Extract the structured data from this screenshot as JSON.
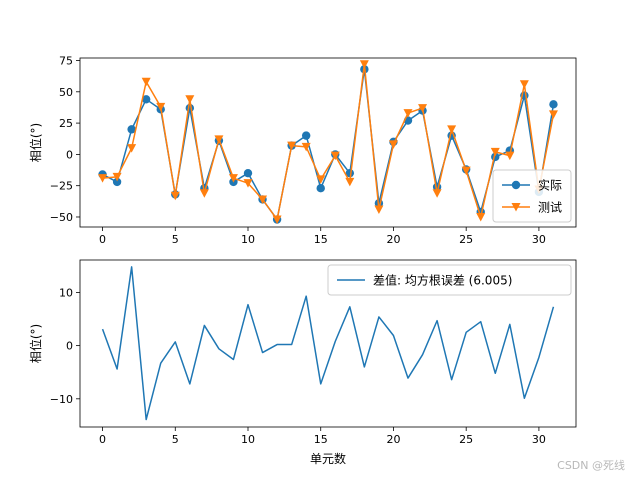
{
  "colors": {
    "blue": "#1f77b4",
    "orange": "#ff7f0e"
  },
  "watermark": "CSDN @死线",
  "chart_data": [
    {
      "type": "line",
      "x": [
        0,
        1,
        2,
        3,
        4,
        5,
        6,
        7,
        8,
        9,
        10,
        11,
        12,
        13,
        14,
        15,
        16,
        17,
        18,
        19,
        20,
        21,
        22,
        23,
        24,
        25,
        26,
        27,
        28,
        29,
        30,
        31
      ],
      "xticks": [
        0,
        5,
        10,
        15,
        20,
        25,
        30
      ],
      "xlim": [
        -1.55,
        32.55
      ],
      "yticks": [
        -50,
        -25,
        0,
        25,
        50,
        75
      ],
      "ylim": [
        -58,
        77
      ],
      "ylabel": "相位(°)",
      "xlabel": "",
      "legend_position": "lower right",
      "series": [
        {
          "name": "实际",
          "marker": "circle",
          "color": "#1f77b4",
          "values": [
            -16,
            -22,
            20,
            44,
            36,
            -32,
            37,
            -27,
            11,
            -22,
            -15,
            -36,
            -52,
            7,
            15,
            -27,
            0,
            -15,
            68,
            -39,
            10,
            27,
            35,
            -26,
            15,
            -12,
            -46,
            -2,
            3,
            47,
            -30,
            40
          ]
        },
        {
          "name": "测试",
          "marker": "triangle-down",
          "color": "#ff7f0e",
          "values": [
            -19,
            -18,
            5,
            58,
            38,
            -33,
            44,
            -31,
            12,
            -19,
            -23,
            -36,
            -52,
            7,
            6,
            -20,
            -1,
            -22,
            72,
            -44,
            8,
            33,
            37,
            -31,
            20,
            -13,
            -50,
            2,
            -1,
            56,
            -28,
            32
          ]
        }
      ]
    },
    {
      "type": "line",
      "x": [
        0,
        1,
        2,
        3,
        4,
        5,
        6,
        7,
        8,
        9,
        10,
        11,
        12,
        13,
        14,
        15,
        16,
        17,
        18,
        19,
        20,
        21,
        22,
        23,
        24,
        25,
        26,
        27,
        28,
        29,
        30,
        31
      ],
      "xticks": [
        0,
        5,
        10,
        15,
        20,
        25,
        30
      ],
      "xlim": [
        -1.55,
        32.55
      ],
      "yticks": [
        -10,
        0,
        10
      ],
      "ylim": [
        -15.3,
        16.1
      ],
      "ylabel": "相位(°)",
      "xlabel": "单元数",
      "legend_position": "upper right",
      "series": [
        {
          "name": "差值: 均方根误差 (6.005)",
          "color": "#1f77b4",
          "values": [
            3.1,
            -4.4,
            14.8,
            -13.9,
            -3.3,
            0.7,
            -7.2,
            3.8,
            -0.6,
            -2.6,
            7.7,
            -1.3,
            0.2,
            0.2,
            9.3,
            -7.2,
            0.8,
            7.3,
            -4.0,
            5.4,
            1.9,
            -6.1,
            -1.7,
            4.7,
            -6.4,
            2.5,
            4.5,
            -5.2,
            4.0,
            -9.9,
            -2.2,
            7.3
          ]
        }
      ]
    }
  ]
}
